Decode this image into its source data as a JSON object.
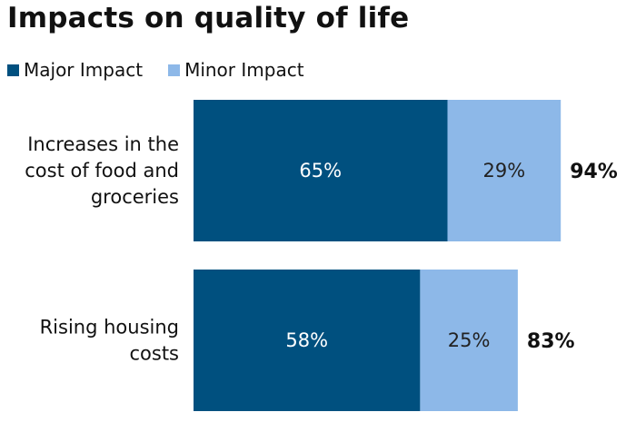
{
  "chart_data": {
    "type": "bar",
    "orientation": "horizontal",
    "stacked": true,
    "title": "Impacts on quality of life",
    "categories": [
      "Increases in the cost of food and groceries",
      "Rising housing costs"
    ],
    "category_lines": [
      [
        "Increases in the",
        "cost of food and",
        "groceries"
      ],
      [
        "Rising housing",
        "costs"
      ]
    ],
    "series": [
      {
        "name": "Major Impact",
        "color": "#00507F",
        "values": [
          65,
          58
        ],
        "labels": [
          "65%",
          "58%"
        ]
      },
      {
        "name": "Minor Impact",
        "color": "#8DB8E8",
        "values": [
          29,
          25
        ],
        "labels": [
          "29%",
          "25%"
        ]
      }
    ],
    "totals": [
      "94%",
      "83%"
    ],
    "xlim": [
      0,
      100
    ],
    "grid": false,
    "legend_position": "top-left"
  }
}
